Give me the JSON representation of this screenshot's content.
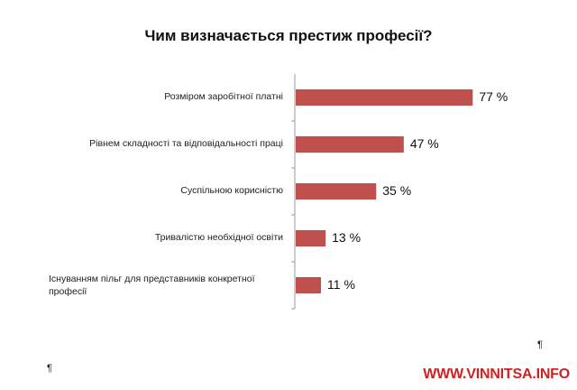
{
  "chart_data": {
    "type": "bar",
    "orientation": "horizontal",
    "title": "Чим визначається престиж професії?",
    "categories": [
      "Розміром заробітної платні",
      "Рівнем складності та відповідальності праці",
      "Суспільною корисністю",
      "Тривалістю необхідної освіти",
      "Існуванням пільг для представників конкретної професії"
    ],
    "values": [
      77,
      47,
      35,
      13,
      11
    ],
    "value_labels": [
      "77 %",
      "47 %",
      "35 %",
      "13 %",
      "11 %"
    ],
    "unit": "%",
    "bar_color": "#c0504d",
    "xlim": [
      0,
      100
    ],
    "grid": false,
    "legend": "none"
  },
  "marks": [
    "¶",
    "¶"
  ],
  "watermark": "WWW.VINNITSA.INFO"
}
